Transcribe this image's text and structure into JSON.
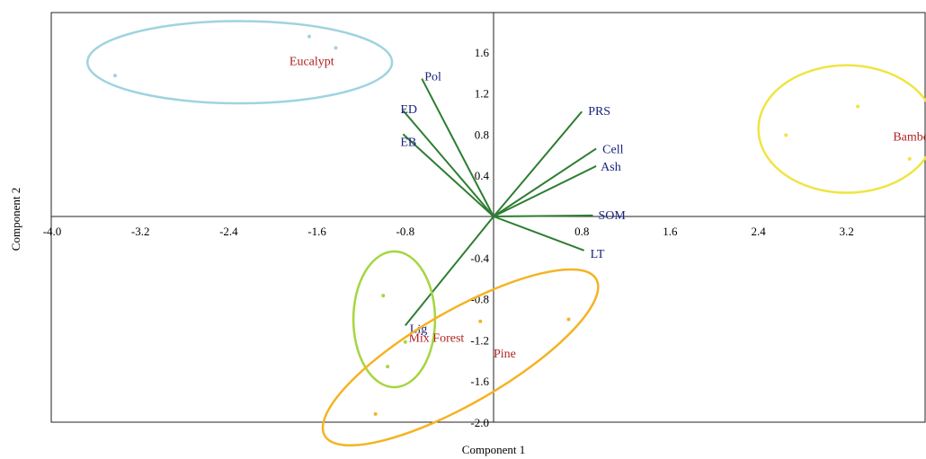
{
  "chart_data": {
    "type": "scatter",
    "subtype": "pca-biplot",
    "title": "",
    "xlabel": "Component 1",
    "ylabel": "Component 2",
    "xlim": [
      -4.0,
      3.8
    ],
    "ylim": [
      -2.0,
      1.95
    ],
    "x_ticks": [
      -4.0,
      -3.2,
      -2.4,
      -1.6,
      -0.8,
      0.8,
      1.6,
      2.4,
      3.2
    ],
    "y_ticks": [
      1.6,
      1.2,
      0.8,
      0.4,
      -0.4,
      -0.8,
      -1.2,
      -1.6,
      -2.0
    ],
    "vector_color": "#2e7d32",
    "label_color_vectors": "#1a237e",
    "label_color_groups": "#b22222",
    "vectors": [
      {
        "name": "Pol",
        "x": -0.65,
        "y": 1.34
      },
      {
        "name": "ED",
        "x": -0.82,
        "y": 1.03
      },
      {
        "name": "EB",
        "x": -0.82,
        "y": 0.8
      },
      {
        "name": "PRS",
        "x": 0.8,
        "y": 1.02
      },
      {
        "name": "Cell",
        "x": 0.93,
        "y": 0.66
      },
      {
        "name": "Ash",
        "x": 0.93,
        "y": 0.49
      },
      {
        "name": "SOM",
        "x": 0.9,
        "y": 0.01
      },
      {
        "name": "LT",
        "x": 0.82,
        "y": -0.33
      },
      {
        "name": "Lig",
        "x": -0.8,
        "y": -1.06
      }
    ],
    "groups": [
      {
        "name": "Eucalypt",
        "color": "#9fd3e0",
        "points": [
          [
            -3.43,
            1.37
          ],
          [
            -1.67,
            1.75
          ],
          [
            -1.43,
            1.64
          ]
        ],
        "label_at": [
          -1.85,
          1.47
        ],
        "ellipse": {
          "cx": -2.3,
          "cy": 1.5,
          "rx": 1.38,
          "ry": 0.4,
          "angle": 0
        }
      },
      {
        "name": "Bamboo",
        "color": "#f0e442",
        "points": [
          [
            2.65,
            0.79
          ],
          [
            3.3,
            1.07
          ],
          [
            3.77,
            0.56
          ]
        ],
        "label_at": [
          3.62,
          0.74
        ],
        "ellipse": {
          "cx": 3.2,
          "cy": 0.85,
          "rx": 0.8,
          "ry": 0.62,
          "angle": 0
        }
      },
      {
        "name": "Mix Forest",
        "color": "#a5d63f",
        "points": [
          [
            -1.0,
            -0.77
          ],
          [
            -0.96,
            -1.46
          ],
          [
            -0.8,
            -1.22
          ]
        ],
        "label_at": [
          -0.77,
          -1.22
        ],
        "ellipse": {
          "cx": -0.9,
          "cy": -1.0,
          "rx": 0.37,
          "ry": 0.66,
          "angle": 0
        }
      },
      {
        "name": "Pine",
        "color": "#f5b324",
        "points": [
          [
            -1.07,
            -1.92
          ],
          [
            -0.12,
            -1.02
          ],
          [
            0.68,
            -1.0
          ]
        ],
        "label_at": [
          0.0,
          -1.37
        ],
        "ellipse": {
          "cx": -0.3,
          "cy": -1.37,
          "rx": 1.42,
          "ry": 0.45,
          "angle": -30
        }
      }
    ]
  }
}
